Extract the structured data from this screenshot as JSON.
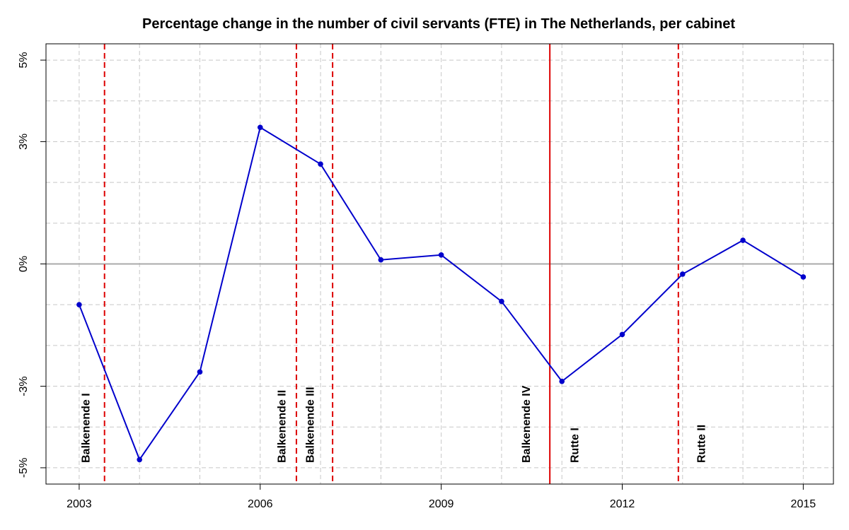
{
  "chart_data": {
    "type": "line",
    "title": "Percentage change in the number of civil servants (FTE) in The Netherlands, per cabinet",
    "xlabel": "",
    "ylabel": "",
    "x": [
      2003,
      2004,
      2005,
      2006,
      2007,
      2008,
      2009,
      2010,
      2011,
      2012,
      2013,
      2014,
      2015
    ],
    "series": [
      {
        "values": [
          -1.0,
          -4.8,
          -2.65,
          3.35,
          2.45,
          0.1,
          0.22,
          -0.92,
          -2.88,
          -1.73,
          -0.25,
          0.58,
          -0.32
        ]
      }
    ],
    "xlim": [
      2003,
      2015
    ],
    "ylim": [
      -5,
      5
    ],
    "x_ticks": [
      2003,
      2006,
      2009,
      2012,
      2015
    ],
    "x_tick_labels": [
      "2003",
      "2006",
      "2009",
      "2012",
      "2015"
    ],
    "y_ticks": [
      -5,
      -3,
      0,
      3,
      5
    ],
    "y_tick_labels": [
      "-5%",
      "-3%",
      "0%",
      "3%",
      "5%"
    ],
    "grid": true,
    "zero_line": true,
    "series_color": "#0000cc",
    "cabinet_line_color": "#dd0000",
    "zero_line_color": "#aaaaaa",
    "grid_color": "#c8c8c8",
    "cabinets": [
      {
        "label": "Balkenende I",
        "label_x": 2003.1,
        "boundary": 2003.42,
        "boundary_style": "dashed"
      },
      {
        "label": "Balkenende II",
        "label_x": 2006.35,
        "boundary": 2006.6,
        "boundary_style": "dashed"
      },
      {
        "label": "Balkenende III",
        "label_x": 2006.82,
        "boundary": 2007.2,
        "boundary_style": "dashed"
      },
      {
        "label": "Balkenende IV",
        "label_x": 2010.4,
        "boundary": 2010.8,
        "boundary_style": "solid"
      },
      {
        "label": "Rutte I",
        "label_x": 2011.2,
        "boundary": 2012.93,
        "boundary_style": "dashed"
      },
      {
        "label": "Rutte II",
        "label_x": 2013.3
      }
    ]
  }
}
